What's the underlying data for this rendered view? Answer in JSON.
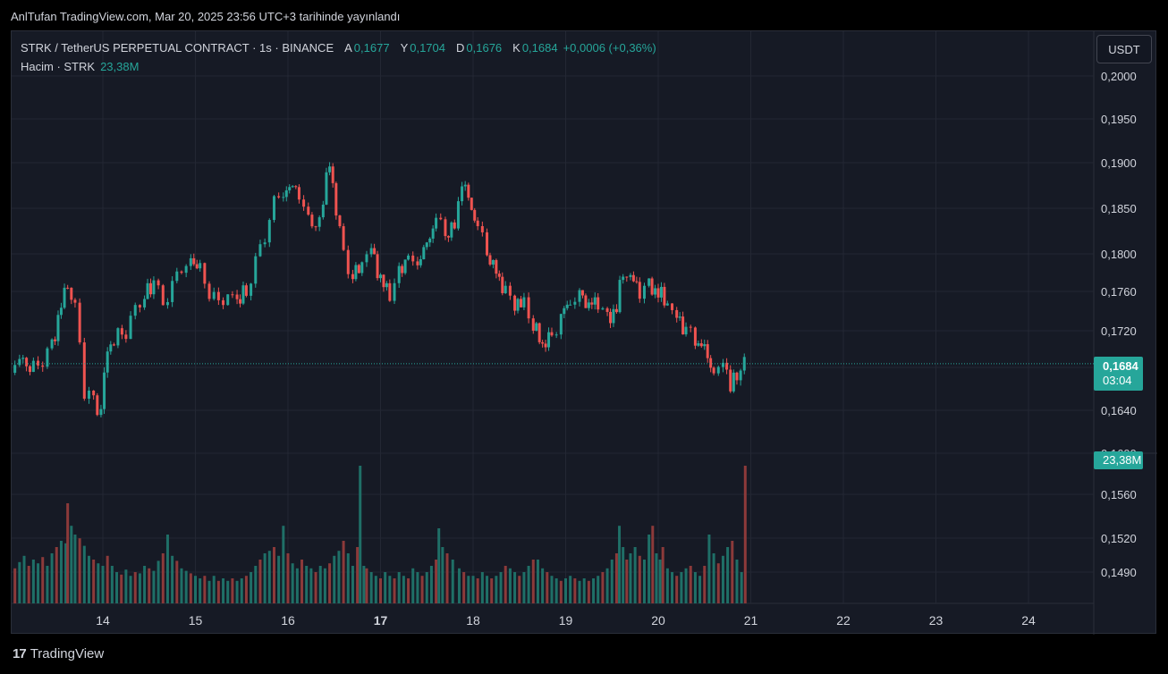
{
  "caption": "AnlTufan TradingView.com, Mar 20, 2025 23:56 UTC+3 tarihinde yayınlandı",
  "header": {
    "symbol": "STRK / TetherUS PERPETUAL CONTRACT · 1s · BINANCE",
    "ohlc": [
      {
        "k": "A",
        "v": "0,1677"
      },
      {
        "k": "Y",
        "v": "0,1704"
      },
      {
        "k": "D",
        "v": "0,1676"
      },
      {
        "k": "K",
        "v": "0,1684"
      }
    ],
    "change": "+0,0006 (+0,36%)",
    "volume_label": "Hacim · STRK",
    "volume_value": "23,38M"
  },
  "currency_button": "USDT",
  "last_price": "0,1684",
  "countdown": "03:04",
  "volume_tag": "23,38M",
  "brand": "TradingView",
  "brand_logo": "17",
  "colors": {
    "up": "#26a69a",
    "down": "#ef5350",
    "grid": "#232733",
    "text": "#d1d4dc",
    "bg": "#161a25"
  },
  "chart_data": {
    "type": "candlestick",
    "price_ticks": [
      "0,2000",
      "0,1950",
      "0,1900",
      "0,1850",
      "0,1800",
      "0,1760",
      "0,1720",
      "0,1680",
      "0,1640",
      "0,1600",
      "0,1560",
      "0,1520",
      "0,1490"
    ],
    "price_tick_values": [
      0.2,
      0.195,
      0.19,
      0.185,
      0.18,
      0.176,
      0.172,
      0.168,
      0.164,
      0.16,
      0.156,
      0.152,
      0.149
    ],
    "x_labels": [
      "14",
      "15",
      "16",
      "17",
      "18",
      "19",
      "20",
      "21",
      "22",
      "23",
      "24"
    ],
    "x_label_bold": [
      false,
      false,
      false,
      true,
      false,
      false,
      false,
      false,
      false,
      false,
      false
    ],
    "last_price_value": 0.1684,
    "close_path": [
      [
        13.0,
        0.1675
      ],
      [
        13.1,
        0.169
      ],
      [
        13.25,
        0.1678
      ],
      [
        13.35,
        0.169
      ],
      [
        13.45,
        0.1705
      ],
      [
        13.55,
        0.1745
      ],
      [
        13.62,
        0.177
      ],
      [
        13.7,
        0.174
      ],
      [
        13.75,
        0.171
      ],
      [
        13.8,
        0.166
      ],
      [
        13.9,
        0.1648
      ],
      [
        13.98,
        0.164
      ],
      [
        14.05,
        0.17
      ],
      [
        14.12,
        0.171
      ],
      [
        14.25,
        0.172
      ],
      [
        14.35,
        0.174
      ],
      [
        14.45,
        0.1755
      ],
      [
        14.55,
        0.177
      ],
      [
        14.65,
        0.175
      ],
      [
        14.75,
        0.1765
      ],
      [
        14.85,
        0.1785
      ],
      [
        14.95,
        0.1795
      ],
      [
        15.05,
        0.1785
      ],
      [
        15.15,
        0.176
      ],
      [
        15.25,
        0.1745
      ],
      [
        15.35,
        0.176
      ],
      [
        15.45,
        0.175
      ],
      [
        15.55,
        0.176
      ],
      [
        15.65,
        0.179
      ],
      [
        15.75,
        0.182
      ],
      [
        15.85,
        0.186
      ],
      [
        15.95,
        0.186
      ],
      [
        16.05,
        0.188
      ],
      [
        16.12,
        0.186
      ],
      [
        16.22,
        0.184
      ],
      [
        16.3,
        0.1825
      ],
      [
        16.38,
        0.186
      ],
      [
        16.45,
        0.19
      ],
      [
        16.52,
        0.185
      ],
      [
        16.6,
        0.18
      ],
      [
        16.7,
        0.1775
      ],
      [
        16.8,
        0.179
      ],
      [
        16.9,
        0.181
      ],
      [
        17.0,
        0.177
      ],
      [
        17.1,
        0.176
      ],
      [
        17.2,
        0.178
      ],
      [
        17.3,
        0.18
      ],
      [
        17.4,
        0.179
      ],
      [
        17.5,
        0.181
      ],
      [
        17.6,
        0.184
      ],
      [
        17.7,
        0.182
      ],
      [
        17.8,
        0.183
      ],
      [
        17.88,
        0.188
      ],
      [
        17.95,
        0.186
      ],
      [
        18.05,
        0.183
      ],
      [
        18.15,
        0.18
      ],
      [
        18.25,
        0.178
      ],
      [
        18.35,
        0.176
      ],
      [
        18.45,
        0.175
      ],
      [
        18.55,
        0.1745
      ],
      [
        18.65,
        0.1725
      ],
      [
        18.75,
        0.1705
      ],
      [
        18.85,
        0.1715
      ],
      [
        18.95,
        0.1735
      ],
      [
        19.05,
        0.175
      ],
      [
        19.15,
        0.176
      ],
      [
        19.25,
        0.1745
      ],
      [
        19.35,
        0.175
      ],
      [
        19.45,
        0.173
      ],
      [
        19.55,
        0.1745
      ],
      [
        19.62,
        0.178
      ],
      [
        19.7,
        0.1775
      ],
      [
        19.8,
        0.176
      ],
      [
        19.9,
        0.1765
      ],
      [
        20.0,
        0.176
      ],
      [
        20.1,
        0.1745
      ],
      [
        20.2,
        0.1735
      ],
      [
        20.3,
        0.172
      ],
      [
        20.4,
        0.171
      ],
      [
        20.5,
        0.17
      ],
      [
        20.6,
        0.1675
      ],
      [
        20.7,
        0.169
      ],
      [
        20.78,
        0.166
      ],
      [
        20.85,
        0.1675
      ],
      [
        20.93,
        0.1684
      ]
    ],
    "volume_bars": [
      [
        13.0,
        0.3
      ],
      [
        13.05,
        0.28
      ],
      [
        13.1,
        0.33
      ],
      [
        13.15,
        0.38
      ],
      [
        13.2,
        0.3
      ],
      [
        13.25,
        0.35
      ],
      [
        13.3,
        0.32
      ],
      [
        13.35,
        0.37
      ],
      [
        13.4,
        0.3
      ],
      [
        13.45,
        0.4
      ],
      [
        13.5,
        0.45
      ],
      [
        13.55,
        0.5
      ],
      [
        13.6,
        0.48
      ],
      [
        13.62,
        0.8
      ],
      [
        13.66,
        0.62
      ],
      [
        13.7,
        0.55
      ],
      [
        13.75,
        0.52
      ],
      [
        13.8,
        0.46
      ],
      [
        13.85,
        0.38
      ],
      [
        13.9,
        0.35
      ],
      [
        13.95,
        0.32
      ],
      [
        14.0,
        0.3
      ],
      [
        14.05,
        0.38
      ],
      [
        14.1,
        0.3
      ],
      [
        14.15,
        0.25
      ],
      [
        14.2,
        0.23
      ],
      [
        14.25,
        0.27
      ],
      [
        14.3,
        0.22
      ],
      [
        14.35,
        0.25
      ],
      [
        14.4,
        0.24
      ],
      [
        14.45,
        0.3
      ],
      [
        14.5,
        0.28
      ],
      [
        14.55,
        0.26
      ],
      [
        14.6,
        0.34
      ],
      [
        14.65,
        0.4
      ],
      [
        14.7,
        0.55
      ],
      [
        14.75,
        0.38
      ],
      [
        14.8,
        0.34
      ],
      [
        14.85,
        0.28
      ],
      [
        14.9,
        0.26
      ],
      [
        14.95,
        0.24
      ],
      [
        15.0,
        0.22
      ],
      [
        15.05,
        0.2
      ],
      [
        15.1,
        0.22
      ],
      [
        15.15,
        0.18
      ],
      [
        15.2,
        0.22
      ],
      [
        15.25,
        0.18
      ],
      [
        15.3,
        0.2
      ],
      [
        15.35,
        0.18
      ],
      [
        15.4,
        0.2
      ],
      [
        15.45,
        0.18
      ],
      [
        15.5,
        0.2
      ],
      [
        15.55,
        0.22
      ],
      [
        15.6,
        0.25
      ],
      [
        15.65,
        0.3
      ],
      [
        15.7,
        0.35
      ],
      [
        15.75,
        0.4
      ],
      [
        15.8,
        0.42
      ],
      [
        15.85,
        0.45
      ],
      [
        15.9,
        0.38
      ],
      [
        15.95,
        0.62
      ],
      [
        16.0,
        0.4
      ],
      [
        16.05,
        0.32
      ],
      [
        16.1,
        0.28
      ],
      [
        16.15,
        0.35
      ],
      [
        16.2,
        0.3
      ],
      [
        16.25,
        0.28
      ],
      [
        16.3,
        0.25
      ],
      [
        16.35,
        0.3
      ],
      [
        16.4,
        0.28
      ],
      [
        16.45,
        0.32
      ],
      [
        16.5,
        0.38
      ],
      [
        16.55,
        0.42
      ],
      [
        16.6,
        0.5
      ],
      [
        16.65,
        0.4
      ],
      [
        16.7,
        0.3
      ],
      [
        16.75,
        0.45
      ],
      [
        16.78,
        1.1
      ],
      [
        16.82,
        0.3
      ],
      [
        16.85,
        0.28
      ],
      [
        16.9,
        0.25
      ],
      [
        16.95,
        0.22
      ],
      [
        17.0,
        0.2
      ],
      [
        17.05,
        0.25
      ],
      [
        17.1,
        0.22
      ],
      [
        17.15,
        0.2
      ],
      [
        17.2,
        0.25
      ],
      [
        17.25,
        0.22
      ],
      [
        17.3,
        0.2
      ],
      [
        17.35,
        0.28
      ],
      [
        17.4,
        0.25
      ],
      [
        17.45,
        0.22
      ],
      [
        17.5,
        0.25
      ],
      [
        17.55,
        0.3
      ],
      [
        17.6,
        0.35
      ],
      [
        17.63,
        0.6
      ],
      [
        17.67,
        0.45
      ],
      [
        17.72,
        0.4
      ],
      [
        17.78,
        0.35
      ],
      [
        17.85,
        0.28
      ],
      [
        17.9,
        0.25
      ],
      [
        17.95,
        0.22
      ],
      [
        18.0,
        0.22
      ],
      [
        18.05,
        0.2
      ],
      [
        18.1,
        0.25
      ],
      [
        18.15,
        0.22
      ],
      [
        18.2,
        0.2
      ],
      [
        18.25,
        0.22
      ],
      [
        18.3,
        0.25
      ],
      [
        18.35,
        0.3
      ],
      [
        18.4,
        0.28
      ],
      [
        18.45,
        0.25
      ],
      [
        18.5,
        0.22
      ],
      [
        18.55,
        0.25
      ],
      [
        18.6,
        0.3
      ],
      [
        18.65,
        0.35
      ],
      [
        18.7,
        0.35
      ],
      [
        18.75,
        0.28
      ],
      [
        18.8,
        0.25
      ],
      [
        18.85,
        0.22
      ],
      [
        18.9,
        0.2
      ],
      [
        18.95,
        0.18
      ],
      [
        19.0,
        0.2
      ],
      [
        19.05,
        0.22
      ],
      [
        19.1,
        0.2
      ],
      [
        19.15,
        0.18
      ],
      [
        19.2,
        0.2
      ],
      [
        19.25,
        0.18
      ],
      [
        19.3,
        0.2
      ],
      [
        19.35,
        0.22
      ],
      [
        19.4,
        0.25
      ],
      [
        19.45,
        0.28
      ],
      [
        19.5,
        0.35
      ],
      [
        19.55,
        0.4
      ],
      [
        19.58,
        0.62
      ],
      [
        19.62,
        0.45
      ],
      [
        19.66,
        0.35
      ],
      [
        19.7,
        0.4
      ],
      [
        19.75,
        0.45
      ],
      [
        19.8,
        0.38
      ],
      [
        19.85,
        0.35
      ],
      [
        19.9,
        0.55
      ],
      [
        19.94,
        0.62
      ],
      [
        19.98,
        0.4
      ],
      [
        20.02,
        0.35
      ],
      [
        20.05,
        0.45
      ],
      [
        20.1,
        0.28
      ],
      [
        20.15,
        0.25
      ],
      [
        20.2,
        0.22
      ],
      [
        20.25,
        0.25
      ],
      [
        20.3,
        0.28
      ],
      [
        20.35,
        0.3
      ],
      [
        20.4,
        0.25
      ],
      [
        20.45,
        0.22
      ],
      [
        20.5,
        0.3
      ],
      [
        20.55,
        0.55
      ],
      [
        20.6,
        0.4
      ],
      [
        20.65,
        0.32
      ],
      [
        20.7,
        0.38
      ],
      [
        20.75,
        0.45
      ],
      [
        20.8,
        0.5
      ],
      [
        20.85,
        0.35
      ],
      [
        20.9,
        0.25
      ],
      [
        20.94,
        1.1
      ]
    ]
  }
}
